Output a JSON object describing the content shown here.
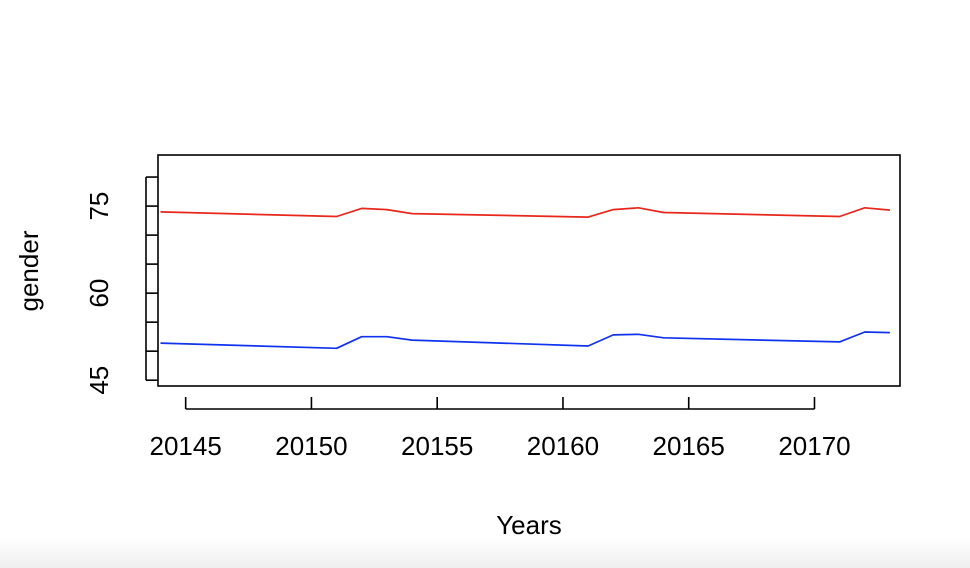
{
  "chart_data": {
    "type": "line",
    "title": "",
    "xlabel": "Years",
    "ylabel": "gender",
    "xlim": [
      20143.9,
      20173.4
    ],
    "ylim": [
      44,
      83.8
    ],
    "x_ticks": [
      20145,
      20150,
      20155,
      20160,
      20165,
      20170
    ],
    "y_ticks": [
      45,
      50,
      55,
      60,
      65,
      70,
      75,
      80
    ],
    "y_tick_labels": [
      {
        "value": 45,
        "label": "45"
      },
      {
        "value": 60,
        "label": "60"
      },
      {
        "value": 75,
        "label": "75"
      }
    ],
    "grid": false,
    "legend": "none",
    "x": [
      20144,
      20151,
      20152,
      20153,
      20154,
      20161,
      20162,
      20163,
      20164,
      20171,
      20172,
      20173
    ],
    "series": [
      {
        "color": "#e8261a",
        "values": [
          74.0,
          73.2,
          74.6,
          74.4,
          73.7,
          73.1,
          74.4,
          74.7,
          73.9,
          73.2,
          74.7,
          74.3
        ]
      },
      {
        "color": "#1033f0",
        "values": [
          51.4,
          50.5,
          52.5,
          52.5,
          51.9,
          50.9,
          52.8,
          52.9,
          52.3,
          51.6,
          53.3,
          53.2
        ]
      }
    ]
  }
}
